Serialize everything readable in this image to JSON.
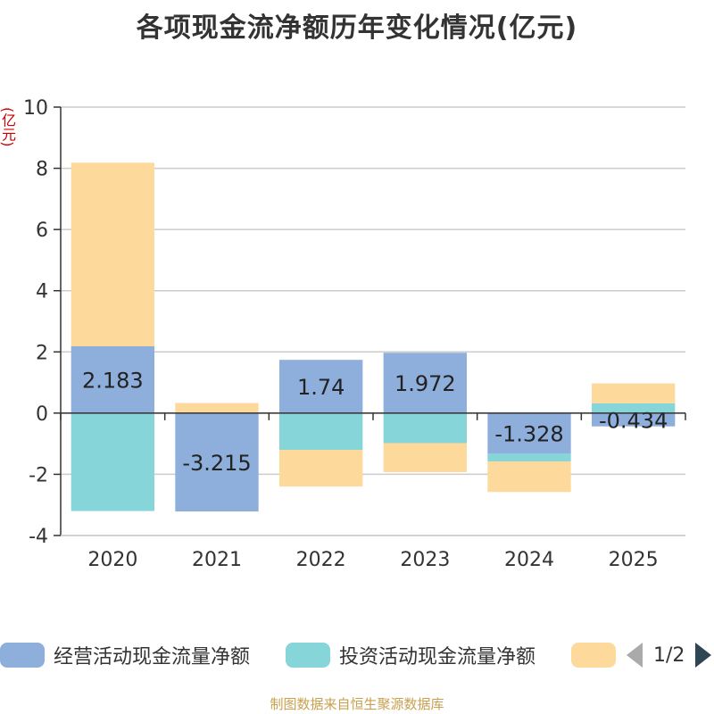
{
  "chart_data": {
    "type": "bar",
    "stacked": true,
    "title": "各项现金流净额历年变化情况(亿元)",
    "ylabel": "(亿元)",
    "ylim": [
      -4,
      10
    ],
    "yticks": [
      10,
      8,
      6,
      4,
      2,
      0,
      -2,
      -4
    ],
    "categories": [
      "2020",
      "2021",
      "2022",
      "2023",
      "2024",
      "2025"
    ],
    "series": [
      {
        "name": "经营活动现金流量净额",
        "color": "#8eaedc",
        "values": [
          2.183,
          -3.215,
          1.74,
          1.972,
          -1.328,
          -0.434
        ]
      },
      {
        "name": "投资活动现金流量净额",
        "color": "#86d5d8",
        "values": [
          -3.2,
          0,
          -1.2,
          -0.98,
          -0.25,
          0.32
        ]
      },
      {
        "name": "",
        "color": "#fdd99b",
        "values": [
          6.0,
          0.33,
          -1.2,
          -0.95,
          -1.0,
          0.65
        ]
      }
    ],
    "data_labels": [
      "2.183",
      "-3.215",
      "1.74",
      "1.972",
      "-1.328",
      "-0.434"
    ],
    "legend_position": "bottom"
  },
  "legend": {
    "items": [
      {
        "label": "经营活动现金流量净额",
        "color": "#8eaedc"
      },
      {
        "label": "投资活动现金流量净额",
        "color": "#86d5d8"
      },
      {
        "label": "",
        "color": "#fdd99b"
      }
    ],
    "page": "1/2"
  },
  "source": "制图数据来自恒生聚源数据库"
}
